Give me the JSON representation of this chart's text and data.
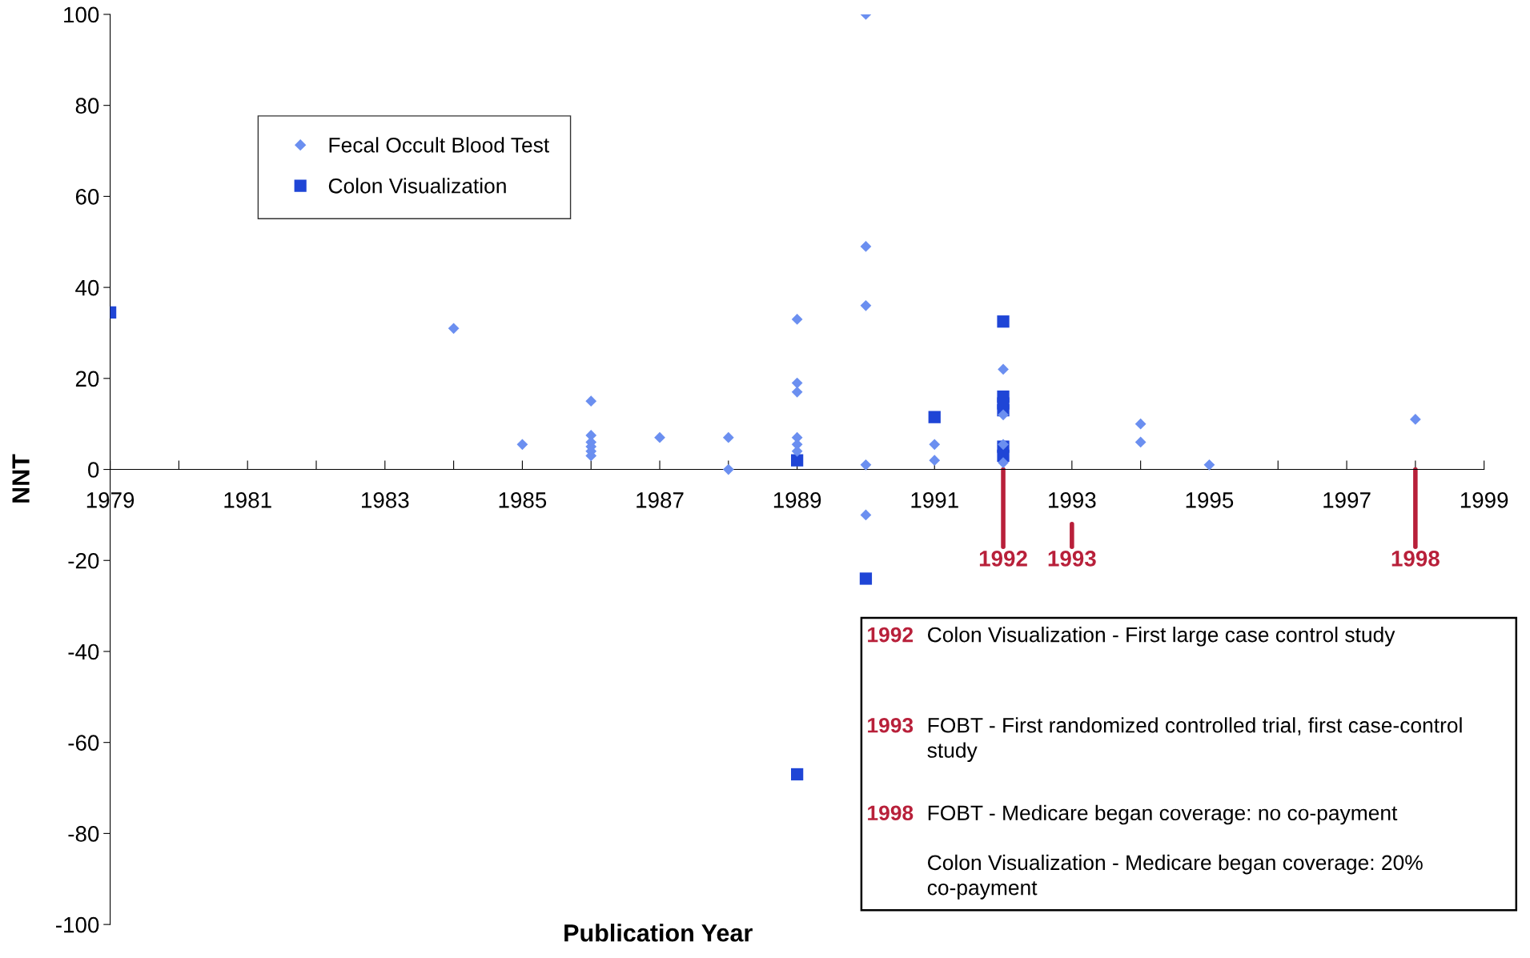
{
  "chart_data": {
    "type": "scatter",
    "xlabel": "Publication Year",
    "ylabel": "NNT",
    "xlim": [
      1979,
      1999
    ],
    "ylim": [
      -100,
      100
    ],
    "xticks": [
      1979,
      {
        "value": 1980,
        "label": null
      },
      1981,
      {
        "value": 1982,
        "label": null
      },
      1983,
      {
        "value": 1984,
        "label": null
      },
      1985,
      {
        "value": 1986,
        "label": null
      },
      1987,
      {
        "value": 1988,
        "label": null
      },
      1989,
      {
        "value": 1990,
        "label": null
      },
      1991,
      {
        "value": 1992,
        "label": null
      },
      1993,
      {
        "value": 1994,
        "label": null
      },
      1995,
      {
        "value": 1996,
        "label": null
      },
      1997,
      {
        "value": 1998,
        "label": null
      },
      1999
    ],
    "yticks": [
      -100,
      -80,
      -60,
      -40,
      -20,
      0,
      20,
      40,
      60,
      80,
      100
    ],
    "grid": false,
    "legend": "top left",
    "series": [
      {
        "name": "Fecal Occult Blood Test",
        "color": "#6b8ff0",
        "marker": "diamond",
        "x": [
          1984,
          1985,
          1986,
          1986,
          1986,
          1986,
          1986,
          1986,
          1987,
          1988,
          1988,
          1989,
          1989,
          1989,
          1989,
          1989,
          1989,
          1990,
          1990,
          1990,
          1990,
          1990,
          1991,
          1991,
          1992,
          1992,
          1992,
          1992,
          1994,
          1994,
          1995,
          1998
        ],
        "values": [
          31,
          5.5,
          15,
          7.5,
          6,
          5,
          4,
          3,
          7,
          7,
          0,
          33,
          19,
          17,
          7,
          5.5,
          4,
          100,
          49,
          36,
          1,
          -10,
          5.5,
          2,
          22,
          12,
          5.5,
          1.5,
          10,
          6,
          1,
          11
        ]
      },
      {
        "name": "Colon Visualization",
        "color": "#1f45d6",
        "marker": "square",
        "x": [
          1979,
          1989,
          1990,
          1989,
          1991,
          1992,
          1992,
          1992,
          1992,
          1992,
          1992
        ],
        "values": [
          34.5,
          2,
          -24,
          -67,
          11.5,
          32.5,
          16,
          14.5,
          13,
          5,
          3
        ]
      }
    ],
    "ref_lines": [
      {
        "axis": "x",
        "value": 1992,
        "label": "1992",
        "color": "#b8203a"
      },
      {
        "axis": "x",
        "value": 1993,
        "label": "1993",
        "color": "#b8203a"
      },
      {
        "axis": "x",
        "value": 1998,
        "label": "1998",
        "color": "#b8203a"
      }
    ],
    "annotations": [
      "1992 Colon Visualization - First large case control study",
      "1993 FOBT - First randomized controlled trial, first case-control study",
      "1998 FOBT - Medicare began coverage: no co-payment",
      "Colon Visualization - Medicare began coverage: 20% co-payment"
    ]
  }
}
